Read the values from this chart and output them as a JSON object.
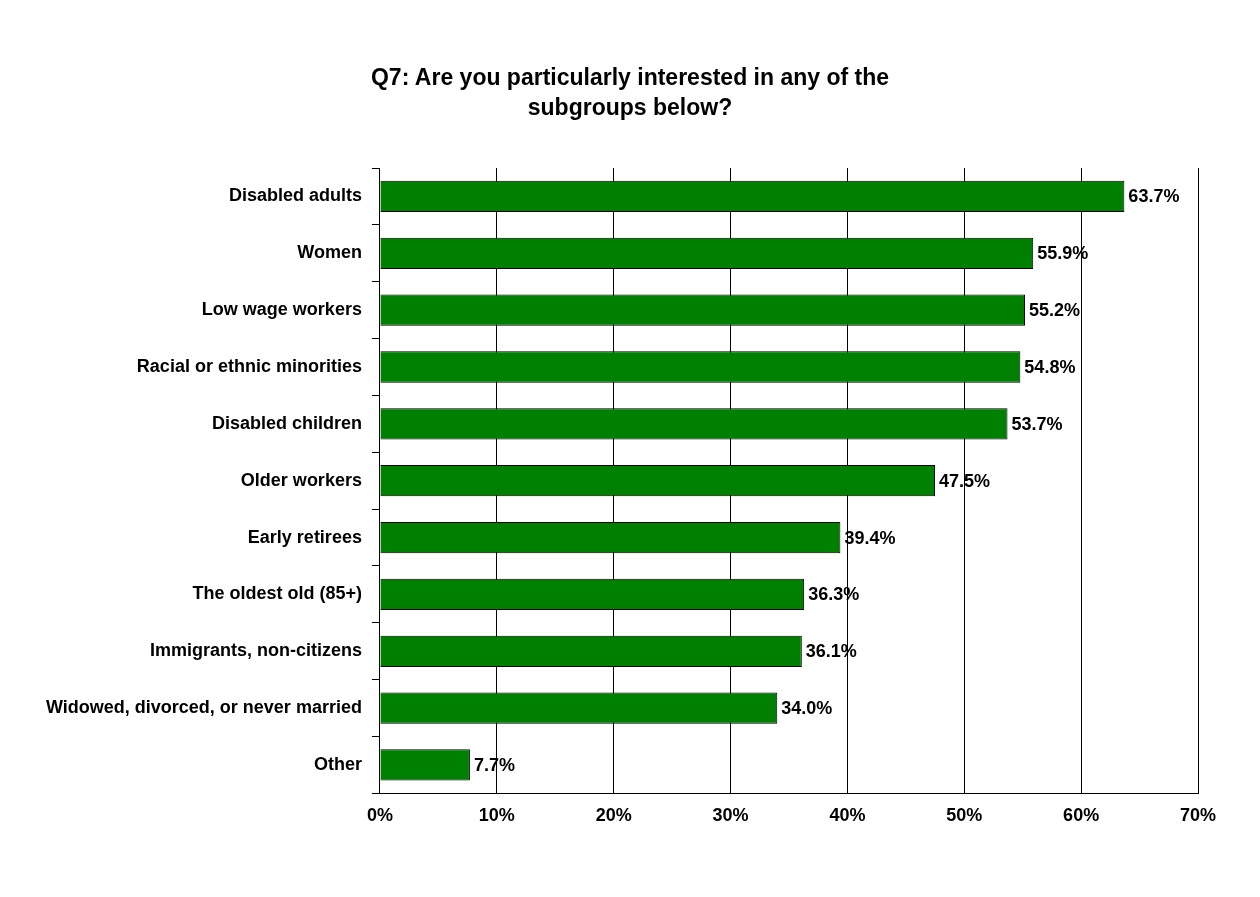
{
  "chart_data": {
    "type": "bar",
    "orientation": "horizontal",
    "title": "Q7: Are you particularly interested in any of the subgroups below?",
    "categories": [
      "Disabled adults",
      "Women",
      "Low wage workers",
      "Racial or ethnic minorities",
      "Disabled children",
      "Older workers",
      "Early retirees",
      "The oldest old (85+)",
      "Immigrants, non-citizens",
      "Widowed, divorced, or never married",
      "Other"
    ],
    "values": [
      63.7,
      55.9,
      55.2,
      54.8,
      53.7,
      47.5,
      39.4,
      36.3,
      36.1,
      34.0,
      7.7
    ],
    "value_labels": [
      "63.7%",
      "55.9%",
      "55.2%",
      "54.8%",
      "53.7%",
      "47.5%",
      "39.4%",
      "36.3%",
      "36.1%",
      "34.0%",
      "7.7%"
    ],
    "color": "#008000",
    "xlim": [
      0,
      70
    ],
    "xticks": [
      {
        "value": 0,
        "label": "0%"
      },
      {
        "value": 10,
        "label": "10%"
      },
      {
        "value": 20,
        "label": "20%"
      },
      {
        "value": 30,
        "label": "30%"
      },
      {
        "value": 40,
        "label": "40%"
      },
      {
        "value": 50,
        "label": "50%"
      },
      {
        "value": 60,
        "label": "60%"
      },
      {
        "value": 70,
        "label": "70%"
      }
    ],
    "grid": "x",
    "legend": false
  }
}
